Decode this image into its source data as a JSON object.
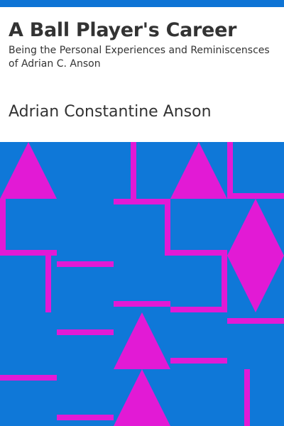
{
  "book": {
    "title": "A Ball Player's Career",
    "subtitle": "Being the Personal Experiences and Reminiscensces of Adrian C. Anson",
    "author": "Adrian Constantine Anson"
  },
  "colors": {
    "accent_bar": "#0e74d5",
    "background_art": "#0f78d8",
    "pattern": "#e21ad5",
    "text": "#333333"
  }
}
